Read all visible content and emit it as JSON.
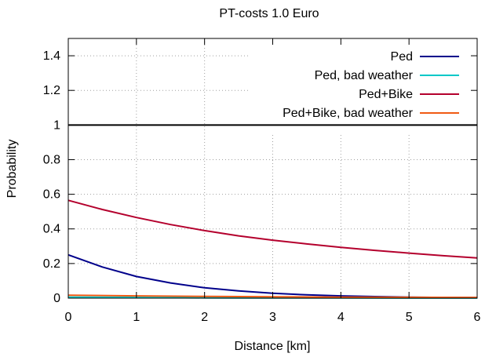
{
  "chart_data": {
    "type": "line",
    "title": "PT-costs 1.0 Euro",
    "xlabel": "Distance [km]",
    "ylabel": "Probability",
    "xlim": [
      0,
      6
    ],
    "ylim": [
      0,
      1.5
    ],
    "xticks": [
      0,
      1,
      2,
      3,
      4,
      5,
      6
    ],
    "yticks": [
      0,
      0.2,
      0.4,
      0.6,
      0.8,
      1,
      1.2,
      1.4
    ],
    "xtick_labels": [
      "0",
      "1",
      "2",
      "3",
      "4",
      "5",
      "6"
    ],
    "ytick_labels": [
      "0",
      "0.2",
      "0.4",
      "0.6",
      "0.8",
      "1",
      "1.2",
      "1.4"
    ],
    "grid": true,
    "legend_position": "top-right",
    "reference_line": {
      "y": 1,
      "color": "#000000"
    },
    "series": [
      {
        "name": "Ped",
        "color": "#00008b",
        "x": [
          0,
          0.5,
          1,
          1.5,
          2,
          2.5,
          3,
          3.5,
          4,
          4.5,
          5,
          5.5,
          6
        ],
        "y": [
          0.25,
          0.18,
          0.125,
          0.088,
          0.06,
          0.042,
          0.028,
          0.019,
          0.013,
          0.009,
          0.006,
          0.004,
          0.003
        ]
      },
      {
        "name": "Ped, bad weather",
        "color": "#00c8c8",
        "x": [
          0,
          1,
          2,
          3,
          4,
          5,
          6
        ],
        "y": [
          0.006,
          0.004,
          0.002,
          0.001,
          0.001,
          0.0005,
          0.0003
        ]
      },
      {
        "name": "Ped+Bike",
        "color": "#b4002d",
        "x": [
          0,
          0.5,
          1,
          1.5,
          2,
          2.5,
          3,
          3.5,
          4,
          4.5,
          5,
          5.5,
          6
        ],
        "y": [
          0.565,
          0.512,
          0.466,
          0.425,
          0.39,
          0.36,
          0.335,
          0.313,
          0.293,
          0.276,
          0.26,
          0.245,
          0.232
        ]
      },
      {
        "name": "Ped+Bike, bad weather",
        "color": "#f05a14",
        "x": [
          0,
          1,
          2,
          3,
          4,
          5,
          6
        ],
        "y": [
          0.017,
          0.013,
          0.01,
          0.008,
          0.006,
          0.005,
          0.004
        ]
      }
    ]
  }
}
